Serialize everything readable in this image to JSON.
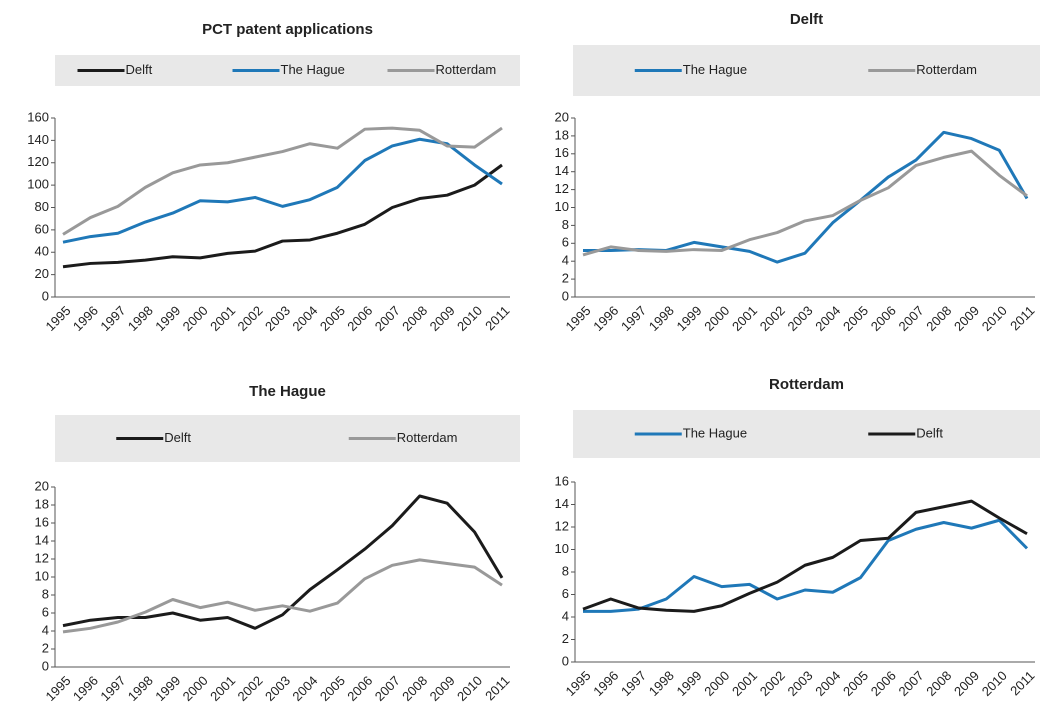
{
  "chart_data": [
    {
      "type": "line",
      "title": "PCT patent applications",
      "categories": [
        "1995",
        "1996",
        "1997",
        "1998",
        "1999",
        "2000",
        "2001",
        "2002",
        "2003",
        "2004",
        "2005",
        "2006",
        "2007",
        "2008",
        "2009",
        "2010",
        "2011"
      ],
      "series": [
        {
          "name": "Delft",
          "color": "#1b1b1b",
          "values": [
            27,
            30,
            31,
            33,
            36,
            35,
            39,
            41,
            50,
            51,
            57,
            65,
            80,
            88,
            91,
            100,
            118
          ]
        },
        {
          "name": "The Hague",
          "color": "#1f78b8",
          "values": [
            49,
            54,
            57,
            67,
            75,
            86,
            85,
            89,
            81,
            87,
            98,
            122,
            135,
            141,
            137,
            118,
            101
          ]
        },
        {
          "name": "Rotterdam",
          "color": "#999999",
          "values": [
            56,
            71,
            81,
            98,
            111,
            118,
            120,
            125,
            130,
            137,
            133,
            150,
            151,
            149,
            135,
            134,
            151
          ]
        }
      ],
      "ylim": [
        0,
        160
      ],
      "yticks": [
        0,
        20,
        40,
        60,
        80,
        100,
        120,
        140,
        160
      ],
      "grid": false
    },
    {
      "type": "line",
      "title": "Delft",
      "categories": [
        "1995",
        "1996",
        "1997",
        "1998",
        "1999",
        "2000",
        "2001",
        "2002",
        "2003",
        "2004",
        "2005",
        "2006",
        "2007",
        "2008",
        "2009",
        "2010",
        "2011"
      ],
      "series": [
        {
          "name": "The Hague",
          "color": "#1f78b8",
          "values": [
            5.2,
            5.2,
            5.3,
            5.2,
            6.1,
            5.6,
            5.1,
            3.9,
            4.9,
            8.3,
            10.8,
            13.4,
            15.3,
            18.4,
            17.7,
            16.4,
            11.0
          ]
        },
        {
          "name": "Rotterdam",
          "color": "#999999",
          "values": [
            4.7,
            5.6,
            5.2,
            5.1,
            5.3,
            5.2,
            6.4,
            7.2,
            8.5,
            9.1,
            10.8,
            12.2,
            14.7,
            15.6,
            16.3,
            13.6,
            11.3
          ]
        }
      ],
      "ylim": [
        0,
        20
      ],
      "yticks": [
        0,
        2,
        4,
        6,
        8,
        10,
        12,
        14,
        16,
        18,
        20
      ],
      "grid": false
    },
    {
      "type": "line",
      "title": "The Hague",
      "categories": [
        "1995",
        "1996",
        "1997",
        "1998",
        "1999",
        "2000",
        "2001",
        "2002",
        "2003",
        "2004",
        "2005",
        "2006",
        "2007",
        "2008",
        "2009",
        "2010",
        "2011"
      ],
      "series": [
        {
          "name": "Delft",
          "color": "#1b1b1b",
          "values": [
            4.6,
            5.2,
            5.5,
            5.5,
            6.0,
            5.2,
            5.5,
            4.3,
            5.8,
            8.6,
            10.8,
            13.1,
            15.7,
            19.0,
            18.2,
            15.0,
            9.9
          ]
        },
        {
          "name": "Rotterdam",
          "color": "#999999",
          "values": [
            3.9,
            4.3,
            5.0,
            6.1,
            7.5,
            6.6,
            7.2,
            6.3,
            6.8,
            6.2,
            7.1,
            9.8,
            11.3,
            11.9,
            11.5,
            11.1,
            9.1
          ]
        }
      ],
      "ylim": [
        0,
        20
      ],
      "yticks": [
        0,
        2,
        4,
        6,
        8,
        10,
        12,
        14,
        16,
        18,
        20
      ],
      "grid": false
    },
    {
      "type": "line",
      "title": "Rotterdam",
      "categories": [
        "1995",
        "1996",
        "1997",
        "1998",
        "1999",
        "2000",
        "2001",
        "2002",
        "2003",
        "2004",
        "2005",
        "2006",
        "2007",
        "2008",
        "2009",
        "2010",
        "2011"
      ],
      "series": [
        {
          "name": "The Hague",
          "color": "#1f78b8",
          "values": [
            4.5,
            4.5,
            4.7,
            5.6,
            7.6,
            6.7,
            6.9,
            5.6,
            6.4,
            6.2,
            7.5,
            10.8,
            11.8,
            12.4,
            11.9,
            12.6,
            10.1
          ]
        },
        {
          "name": "Delft",
          "color": "#1b1b1b",
          "values": [
            4.7,
            5.6,
            4.8,
            4.6,
            4.5,
            5.0,
            6.1,
            7.1,
            8.6,
            9.3,
            10.8,
            11.0,
            13.3,
            13.8,
            14.3,
            12.8,
            11.4
          ]
        }
      ],
      "ylim": [
        0,
        16
      ],
      "yticks": [
        0,
        2,
        4,
        6,
        8,
        10,
        12,
        14,
        16
      ],
      "grid": false
    }
  ]
}
